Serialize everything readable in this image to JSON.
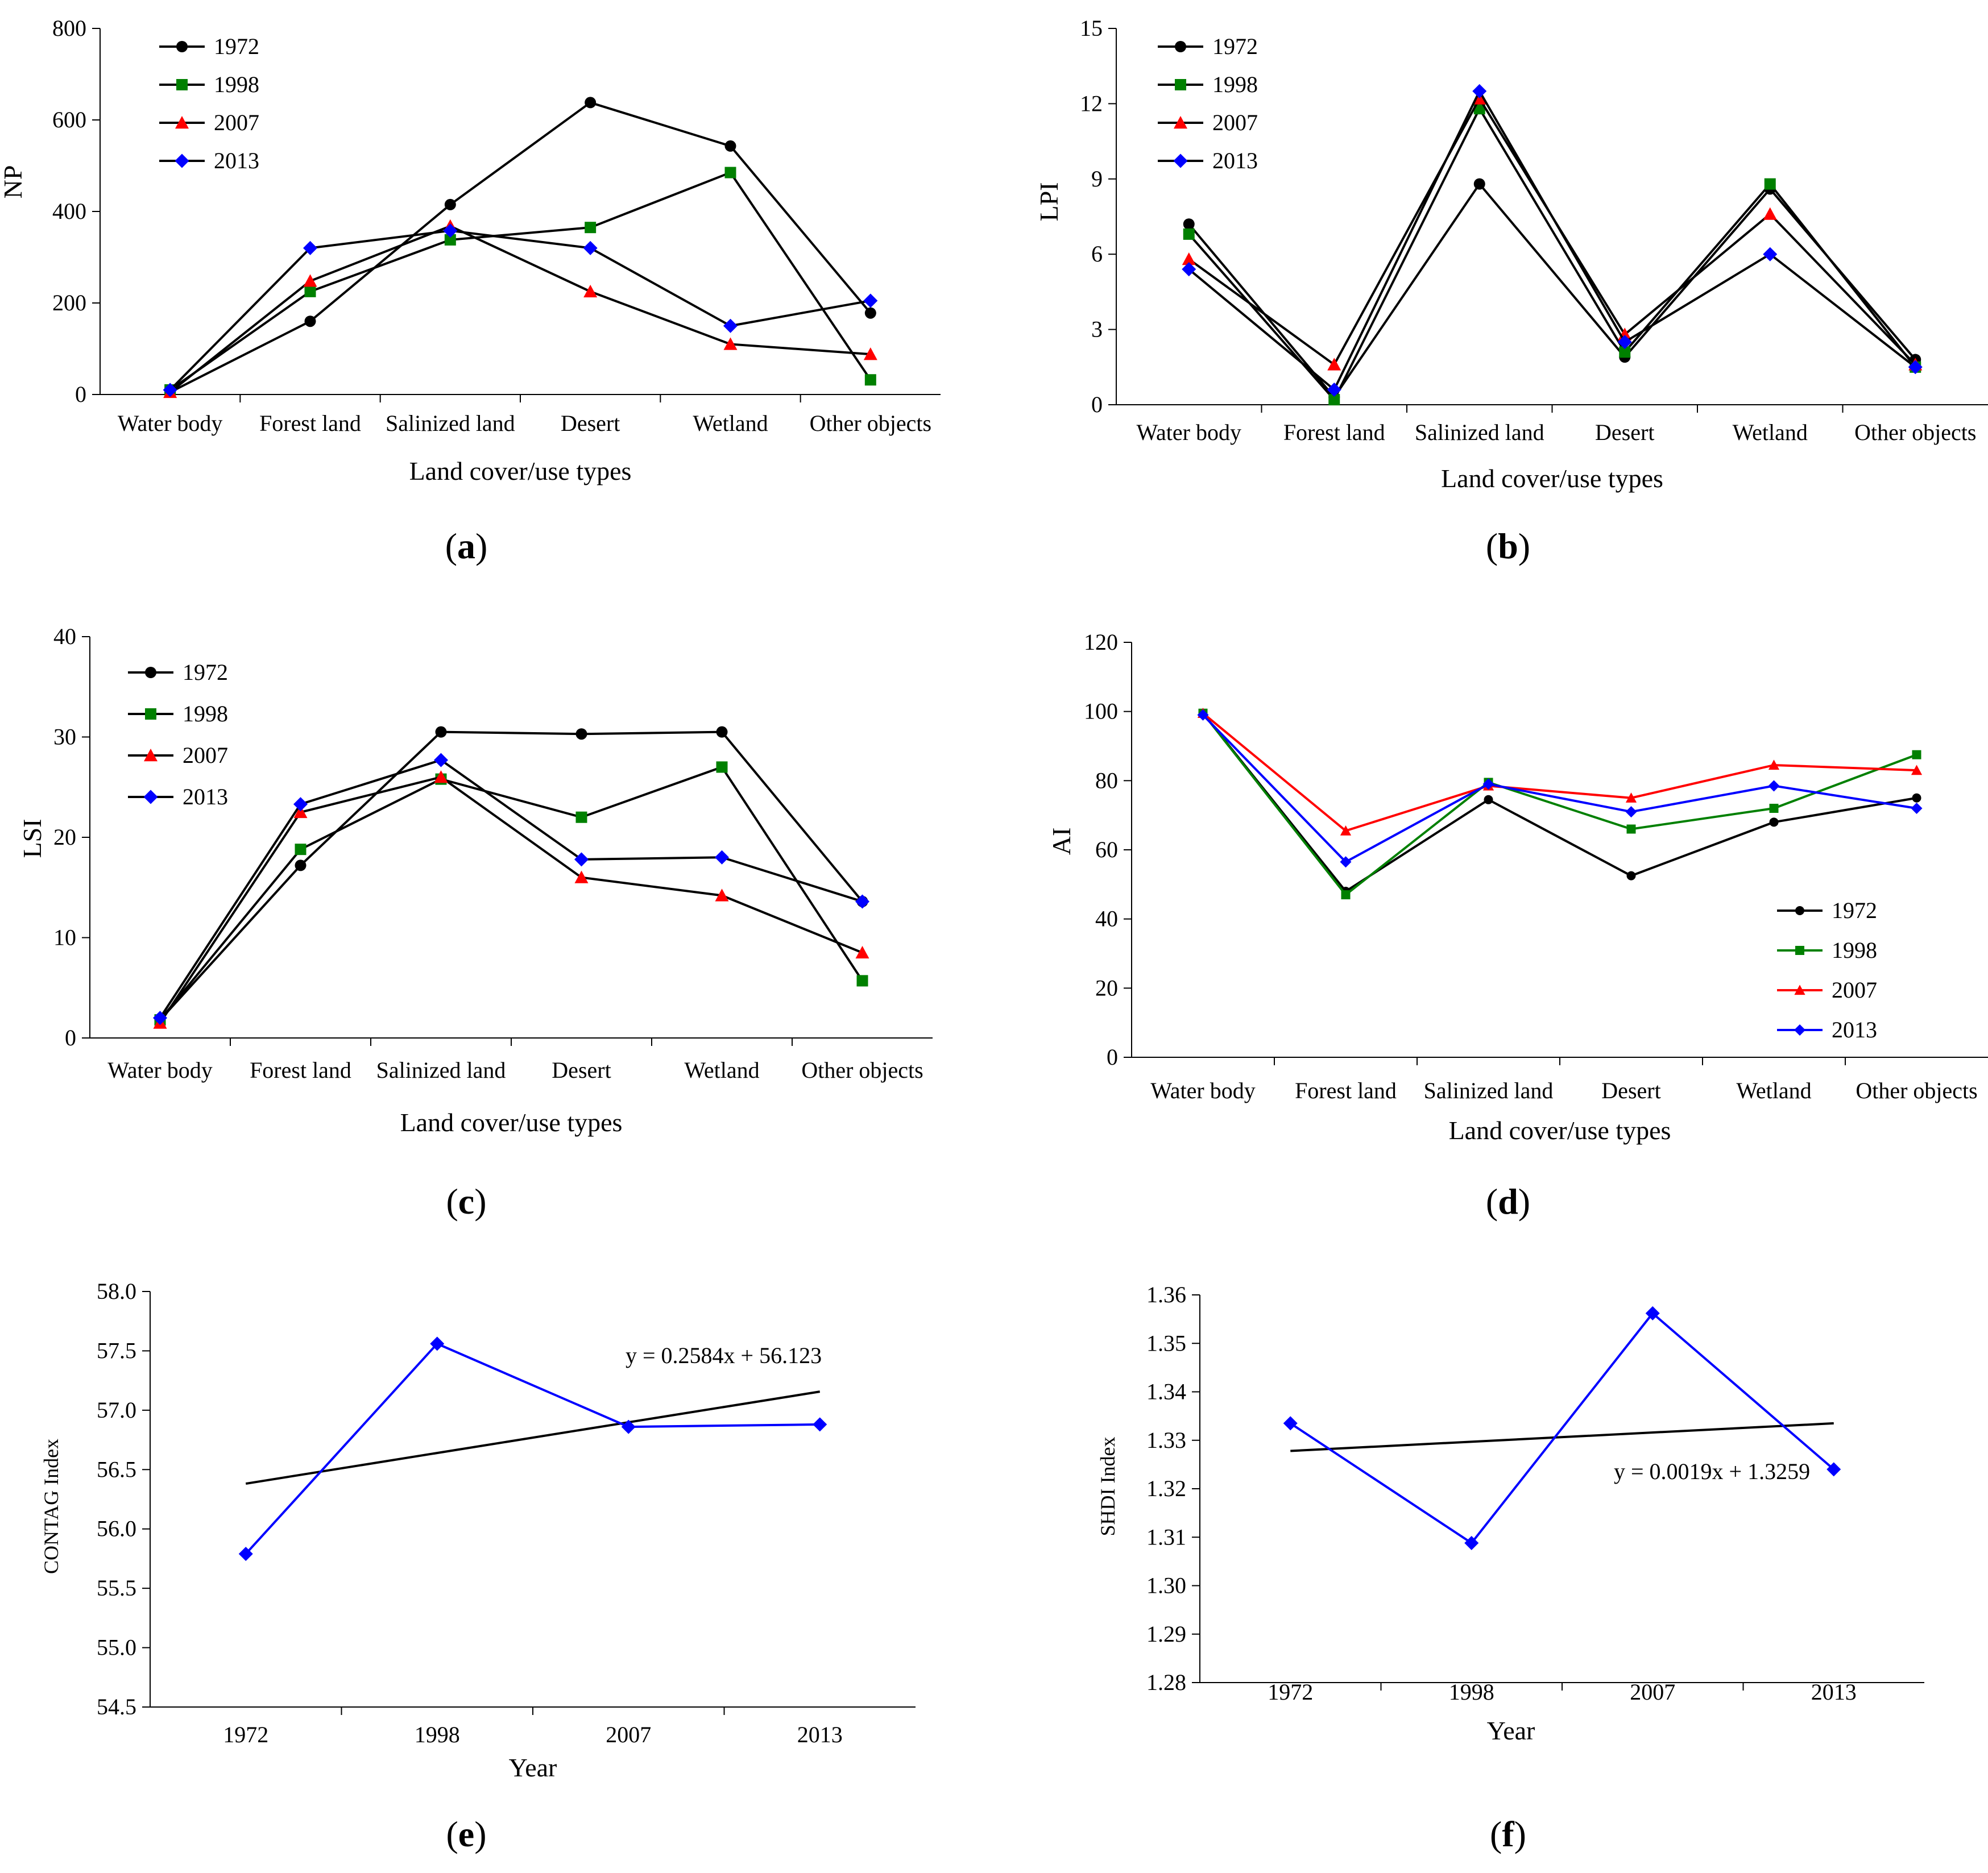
{
  "colors": {
    "1972": "#000000",
    "1998": "#008000",
    "2007": "#ff0000",
    "2013": "#0000ff",
    "trend": "#000000"
  },
  "chart_data": [
    {
      "id": "a",
      "type": "line",
      "caption": "a",
      "ylabel": "NP",
      "xlabel": "Land cover/use types",
      "ylim": [
        0,
        800
      ],
      "yticks": [
        0,
        200,
        400,
        600,
        800
      ],
      "ytick_labels": [
        "0",
        "200",
        "400",
        "600",
        "800"
      ],
      "categories": [
        "Water body",
        "Forest land",
        "Salinized land",
        "Desert",
        "Wetland",
        "Other objects"
      ],
      "legend_position": "top-left",
      "series": [
        {
          "name": "1972",
          "values": [
            5,
            160,
            415,
            638,
            543,
            178
          ]
        },
        {
          "name": "1998",
          "values": [
            10,
            225,
            338,
            365,
            485,
            32
          ]
        },
        {
          "name": "2007",
          "values": [
            5,
            248,
            368,
            225,
            110,
            88
          ]
        },
        {
          "name": "2013",
          "values": [
            10,
            320,
            358,
            320,
            150,
            205
          ]
        }
      ]
    },
    {
      "id": "b",
      "type": "line",
      "caption": "b",
      "ylabel": "LPI",
      "xlabel": "Land cover/use types",
      "ylim": [
        0,
        15
      ],
      "yticks": [
        0,
        3,
        6,
        9,
        12,
        15
      ],
      "ytick_labels": [
        "0",
        "3",
        "6",
        "9",
        "12",
        "15"
      ],
      "categories": [
        "Water body",
        "Forest land",
        "Salinized land",
        "Desert",
        "Wetland",
        "Other objects"
      ],
      "legend_position": "top-left",
      "series": [
        {
          "name": "1972",
          "values": [
            7.2,
            0.3,
            8.8,
            1.9,
            8.6,
            1.8
          ]
        },
        {
          "name": "1998",
          "values": [
            6.8,
            0.2,
            11.8,
            2.1,
            8.8,
            1.5
          ]
        },
        {
          "name": "2007",
          "values": [
            5.8,
            1.6,
            12.2,
            2.8,
            7.6,
            1.6
          ]
        },
        {
          "name": "2013",
          "values": [
            5.4,
            0.6,
            12.5,
            2.5,
            6.0,
            1.5
          ]
        }
      ]
    },
    {
      "id": "c",
      "type": "line",
      "caption": "c",
      "ylabel": "LSI",
      "xlabel": "Land cover/use types",
      "ylim": [
        0,
        40
      ],
      "yticks": [
        0,
        10,
        20,
        30,
        40
      ],
      "ytick_labels": [
        "0",
        "10",
        "20",
        "30",
        "40"
      ],
      "categories": [
        "Water body",
        "Forest land",
        "Salinized land",
        "Desert",
        "Wetland",
        "Other objects"
      ],
      "legend_position": "top-left",
      "series": [
        {
          "name": "1972",
          "values": [
            1.8,
            17.2,
            30.5,
            30.3,
            30.5,
            13.6
          ]
        },
        {
          "name": "1998",
          "values": [
            1.8,
            18.8,
            25.8,
            22.0,
            27.0,
            5.7
          ]
        },
        {
          "name": "2007",
          "values": [
            1.5,
            22.5,
            26.0,
            16.0,
            14.2,
            8.5
          ]
        },
        {
          "name": "2013",
          "values": [
            2.0,
            23.3,
            27.7,
            17.8,
            18.0,
            13.6
          ]
        }
      ]
    },
    {
      "id": "d",
      "type": "line",
      "caption": "d",
      "ylabel": "AI",
      "xlabel": "Land cover/use types",
      "ylim": [
        0,
        120
      ],
      "yticks": [
        0,
        20,
        40,
        60,
        80,
        100,
        120
      ],
      "ytick_labels": [
        "0",
        "20",
        "40",
        "60",
        "80",
        "100",
        "120"
      ],
      "categories": [
        "Water body",
        "Forest land",
        "Salinized land",
        "Desert",
        "Wetland",
        "Other objects"
      ],
      "legend_position": "bottom-right",
      "series": [
        {
          "name": "1972",
          "values": [
            99.5,
            48.0,
            74.5,
            52.5,
            68.0,
            75.0
          ]
        },
        {
          "name": "1998",
          "values": [
            99.5,
            47.0,
            79.5,
            66.0,
            72.0,
            87.5
          ]
        },
        {
          "name": "2007",
          "values": [
            99.5,
            65.5,
            78.5,
            75.0,
            84.5,
            83.0
          ]
        },
        {
          "name": "2013",
          "values": [
            99.0,
            56.5,
            79.0,
            71.0,
            78.5,
            72.0
          ]
        }
      ]
    },
    {
      "id": "e",
      "type": "line",
      "caption": "e",
      "ylabel": "CONTAG Index",
      "xlabel": "Year",
      "ylim": [
        54.5,
        58.0
      ],
      "yticks": [
        54.5,
        55.0,
        55.5,
        56.0,
        56.5,
        57.0,
        57.5,
        58.0
      ],
      "ytick_labels": [
        "54.5",
        "55.0",
        "55.5",
        "56.0",
        "56.5",
        "57.0",
        "57.5",
        "58.0"
      ],
      "categories": [
        "1972",
        "1998",
        "2007",
        "2013"
      ],
      "series": [
        {
          "name": "CONTAG",
          "values": [
            55.79,
            57.56,
            56.86,
            56.88
          ]
        }
      ],
      "trendline": {
        "slope": 0.2584,
        "intercept": 56.123,
        "label": "y = 0.2584x + 56.123"
      }
    },
    {
      "id": "f",
      "type": "line",
      "caption": "f",
      "ylabel": "SHDI Index",
      "xlabel": "Year",
      "ylim": [
        1.28,
        1.36
      ],
      "yticks": [
        1.28,
        1.29,
        1.3,
        1.31,
        1.32,
        1.33,
        1.34,
        1.35,
        1.36
      ],
      "ytick_labels": [
        "1.28",
        "1.29",
        "1.30",
        "1.31",
        "1.32",
        "1.33",
        "1.34",
        "1.35",
        "1.36"
      ],
      "categories": [
        "1972",
        "1998",
        "2007",
        "2013"
      ],
      "series": [
        {
          "name": "SHDI",
          "values": [
            1.3335,
            1.3088,
            1.3562,
            1.324
          ]
        }
      ],
      "trendline": {
        "slope": 0.0019,
        "intercept": 1.3259,
        "label": "y = 0.0019x + 1.3259"
      }
    }
  ]
}
